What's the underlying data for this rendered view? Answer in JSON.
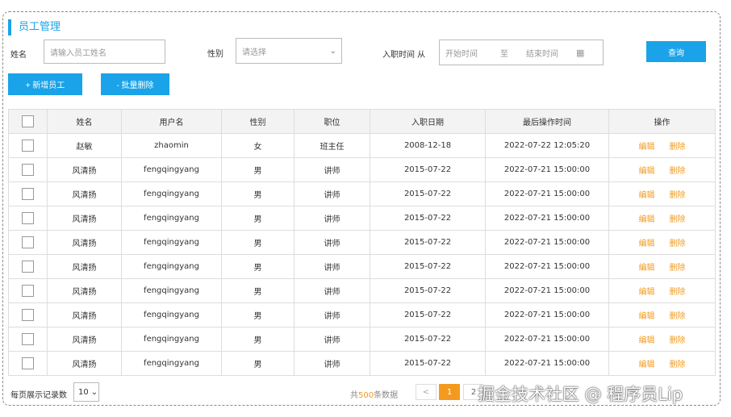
{
  "title": "员工管理",
  "filters": {
    "name_label": "姓名",
    "name_placeholder": "请输入员工姓名",
    "gender_label": "性别",
    "gender_placeholder": "请选择",
    "date_label": "入职时间 从",
    "start_placeholder": "开始时间",
    "to": "至",
    "end_placeholder": "结束时间",
    "query": "查询"
  },
  "actions": {
    "add": "+ 新增员工",
    "batch_delete": "- 批量删除"
  },
  "table": {
    "headers": [
      "姓名",
      "用户名",
      "性别",
      "职位",
      "入职日期",
      "最后操作时间",
      "操作"
    ],
    "rows": [
      [
        "赵敏",
        "zhaomin",
        "女",
        "班主任",
        "2008-12-18",
        "2022-07-22 12:05:20"
      ],
      [
        "风清扬",
        "fengqingyang",
        "男",
        "讲师",
        "2015-07-22",
        "2022-07-21 15:00:00"
      ],
      [
        "风清扬",
        "fengqingyang",
        "男",
        "讲师",
        "2015-07-22",
        "2022-07-21 15:00:00"
      ],
      [
        "风清扬",
        "fengqingyang",
        "男",
        "讲师",
        "2015-07-22",
        "2022-07-21 15:00:00"
      ],
      [
        "风清扬",
        "fengqingyang",
        "男",
        "讲师",
        "2015-07-22",
        "2022-07-21 15:00:00"
      ],
      [
        "风清扬",
        "fengqingyang",
        "男",
        "讲师",
        "2015-07-22",
        "2022-07-21 15:00:00"
      ],
      [
        "风清扬",
        "fengqingyang",
        "男",
        "讲师",
        "2015-07-22",
        "2022-07-21 15:00:00"
      ],
      [
        "风清扬",
        "fengqingyang",
        "男",
        "讲师",
        "2015-07-22",
        "2022-07-21 15:00:00"
      ],
      [
        "风清扬",
        "fengqingyang",
        "男",
        "讲师",
        "2015-07-22",
        "2022-07-21 15:00:00"
      ],
      [
        "风清扬",
        "fengqingyang",
        "男",
        "讲师",
        "2015-07-22",
        "2022-07-21 15:00:00"
      ]
    ],
    "edit": "编辑",
    "delete": "删除"
  },
  "footer": {
    "page_size_label": "每页展示记录数",
    "page_size": "10",
    "total_prefix": "共",
    "total": "500",
    "total_suffix": "条数据",
    "prev": "<",
    "pages": [
      "1",
      "2"
    ]
  },
  "watermark": "掘金技术社区 @ 程序员Lip",
  "colors": {
    "accent": "#1aa3e8",
    "action": "#f39a1e"
  }
}
